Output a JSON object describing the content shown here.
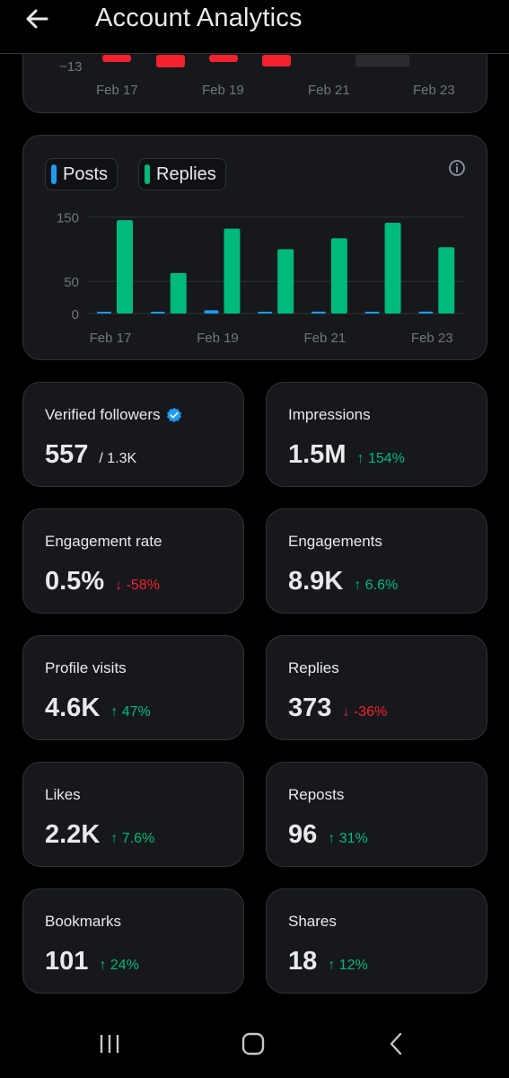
{
  "header": {
    "title": "Account Analytics",
    "back_icon": "arrow-left-icon"
  },
  "top_chart": {
    "y_tick": "−13",
    "x_ticks": [
      "Feb 17",
      "Feb 19",
      "Feb 21",
      "Feb 23"
    ]
  },
  "chart_data": {
    "type": "bar",
    "categories": [
      "Feb 17",
      "Feb 18",
      "Feb 19",
      "Feb 20",
      "Feb 21",
      "Feb 22",
      "Feb 23"
    ],
    "x_tick_labels": [
      "Feb 17",
      "Feb 19",
      "Feb 21",
      "Feb 23"
    ],
    "series": [
      {
        "name": "Posts",
        "color": "#1d9bf0",
        "values": [
          2,
          2,
          5,
          2,
          3,
          2,
          3
        ]
      },
      {
        "name": "Replies",
        "color": "#00ba7c",
        "values": [
          145,
          63,
          132,
          100,
          117,
          141,
          103
        ]
      }
    ],
    "y_ticks": [
      "150",
      "50",
      "0"
    ],
    "ylim": [
      0,
      155
    ],
    "grid": true,
    "legend": "top-left",
    "info_icon": "info-icon"
  },
  "stats": [
    {
      "label": "Verified followers",
      "value": "557",
      "sub": "/ 1.3K",
      "verified": true
    },
    {
      "label": "Impressions",
      "value": "1.5M",
      "change": "154%",
      "direction": "up"
    },
    {
      "label": "Engagement rate",
      "value": "0.5%",
      "change": "-58%",
      "direction": "down"
    },
    {
      "label": "Engagements",
      "value": "8.9K",
      "change": "6.6%",
      "direction": "up"
    },
    {
      "label": "Profile visits",
      "value": "4.6K",
      "change": "47%",
      "direction": "up"
    },
    {
      "label": "Replies",
      "value": "373",
      "change": "-36%",
      "direction": "down"
    },
    {
      "label": "Likes",
      "value": "2.2K",
      "change": "7.6%",
      "direction": "up"
    },
    {
      "label": "Reposts",
      "value": "96",
      "change": "31%",
      "direction": "up"
    },
    {
      "label": "Bookmarks",
      "value": "101",
      "change": "24%",
      "direction": "up"
    },
    {
      "label": "Shares",
      "value": "18",
      "change": "12%",
      "direction": "up"
    }
  ],
  "colors": {
    "up": "#00ba7c",
    "down": "#f4212e",
    "verified": "#1d9bf0"
  },
  "navbar": {
    "items": [
      "recent-apps-icon",
      "home-icon",
      "back-icon"
    ]
  }
}
